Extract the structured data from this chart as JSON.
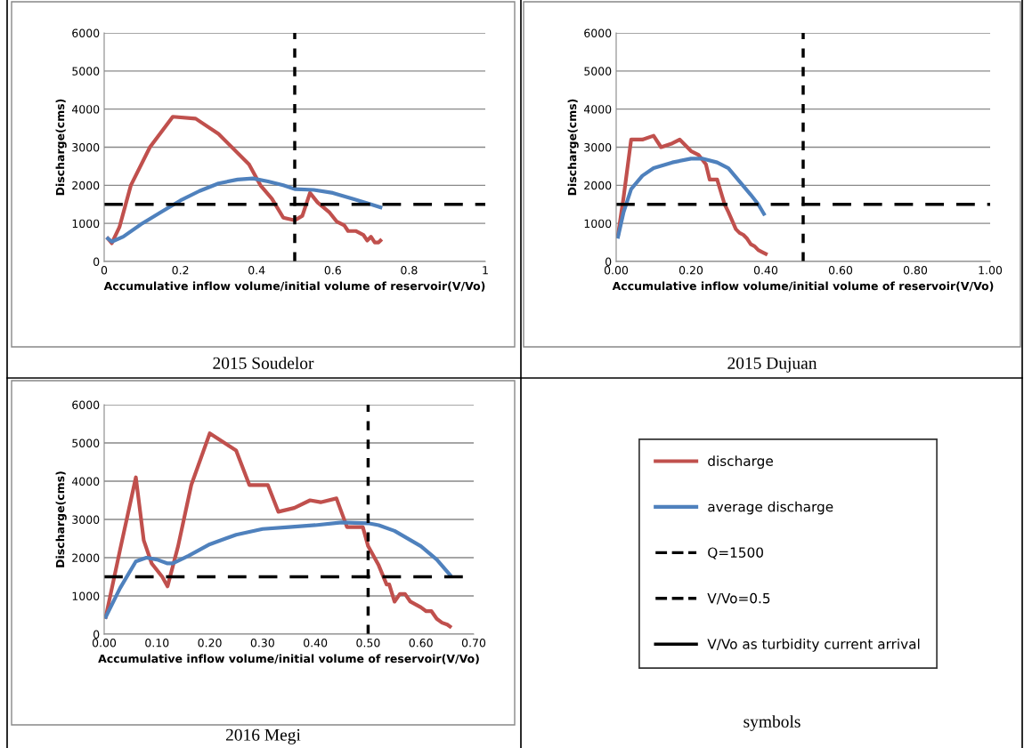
{
  "chart_data": [
    {
      "type": "line",
      "title": "2015 Soudelor",
      "xlabel": "Accumulative inflow volume/initial volume of reservoir(V/Vo)",
      "ylabel": "Discharge(cms)",
      "xlim": [
        0,
        1
      ],
      "xticks": [
        0,
        0.2,
        0.4,
        0.6,
        0.8,
        1
      ],
      "ylim": [
        0,
        6000
      ],
      "yticks": [
        0,
        1000,
        2000,
        3000,
        4000,
        5000,
        6000
      ],
      "grid": "y",
      "legend": "bottom right",
      "series": [
        {
          "name": "discharge",
          "color": "#c0504d",
          "x": [
            0.01,
            0.02,
            0.04,
            0.07,
            0.12,
            0.18,
            0.24,
            0.3,
            0.38,
            0.41,
            0.44,
            0.47,
            0.5,
            0.52,
            0.54,
            0.56,
            0.59,
            0.61,
            0.63,
            0.64,
            0.66,
            0.68,
            0.69,
            0.7,
            0.71,
            0.72,
            0.725
          ],
          "values": [
            600,
            480,
            900,
            2000,
            3000,
            3800,
            3750,
            3350,
            2550,
            2000,
            1650,
            1150,
            1080,
            1200,
            1800,
            1550,
            1300,
            1050,
            950,
            800,
            800,
            700,
            550,
            650,
            500,
            500,
            550
          ]
        },
        {
          "name": "average discharge",
          "color": "#4f81bd",
          "x": [
            0.01,
            0.02,
            0.05,
            0.1,
            0.15,
            0.2,
            0.25,
            0.3,
            0.35,
            0.39,
            0.43,
            0.47,
            0.5,
            0.55,
            0.6,
            0.65,
            0.7,
            0.725
          ],
          "values": [
            600,
            520,
            650,
            1000,
            1300,
            1600,
            1850,
            2050,
            2150,
            2180,
            2100,
            2000,
            1900,
            1880,
            1800,
            1650,
            1500,
            1420
          ]
        }
      ],
      "ref_lines": [
        {
          "axis": "y",
          "value": 1500,
          "label": "Q=1500",
          "color": "#000000",
          "line_style": "dashed"
        },
        {
          "axis": "x",
          "value": 0.5,
          "label": "V/Vo=0.5",
          "color": "#000000",
          "line_style": "dotted"
        }
      ]
    },
    {
      "type": "line",
      "title": "2015 Dujuan",
      "xlabel": "Accumulative inflow volume/initial volume of reservoir(V/Vo)",
      "ylabel": "Discharge(cms)",
      "xlim": [
        0,
        1
      ],
      "xticks": [
        {
          "value": 0,
          "label": "0.00"
        },
        {
          "value": 0.2,
          "label": "0.20"
        },
        {
          "value": 0.4,
          "label": "0.40"
        },
        {
          "value": 0.6,
          "label": "0.60"
        },
        {
          "value": 0.8,
          "label": "0.80"
        },
        {
          "value": 1,
          "label": "1.00"
        }
      ],
      "ylim": [
        0,
        6000
      ],
      "yticks": [
        0,
        1000,
        2000,
        3000,
        4000,
        5000,
        6000
      ],
      "grid": "y",
      "series": [
        {
          "color": "#c0504d",
          "x": [
            0.005,
            0.02,
            0.04,
            0.07,
            0.1,
            0.12,
            0.15,
            0.17,
            0.2,
            0.22,
            0.24,
            0.25,
            0.27,
            0.29,
            0.3,
            0.32,
            0.33,
            0.34,
            0.35,
            0.36,
            0.37,
            0.38,
            0.39,
            0.4
          ],
          "values": [
            700,
            1700,
            3200,
            3200,
            3300,
            3000,
            3100,
            3200,
            2900,
            2800,
            2550,
            2150,
            2150,
            1500,
            1300,
            850,
            750,
            700,
            600,
            450,
            400,
            300,
            250,
            200
          ]
        },
        {
          "color": "#4f81bd",
          "x": [
            0.005,
            0.02,
            0.04,
            0.07,
            0.1,
            0.15,
            0.2,
            0.23,
            0.27,
            0.3,
            0.33,
            0.36,
            0.38,
            0.395
          ],
          "values": [
            650,
            1300,
            1900,
            2250,
            2450,
            2600,
            2700,
            2700,
            2600,
            2450,
            2100,
            1750,
            1500,
            1250
          ]
        }
      ],
      "ref_lines": [
        {
          "axis": "y",
          "value": 1500,
          "color": "#000000",
          "line_style": "dashed"
        },
        {
          "axis": "x",
          "value": 0.5,
          "color": "#000000",
          "line_style": "dotted"
        }
      ]
    },
    {
      "type": "line",
      "title": "2016 Megi",
      "xlabel": "Accumulative inflow volume/initial volume of reservoir(V/Vo)",
      "ylabel": "Discharge(cms)",
      "xlim": [
        0,
        0.7
      ],
      "xticks": [
        {
          "value": 0,
          "label": "0.00"
        },
        {
          "value": 0.1,
          "label": "0.10"
        },
        {
          "value": 0.2,
          "label": "0.20"
        },
        {
          "value": 0.3,
          "label": "0.30"
        },
        {
          "value": 0.4,
          "label": "0.40"
        },
        {
          "value": 0.5,
          "label": "0.50"
        },
        {
          "value": 0.6,
          "label": "0.60"
        },
        {
          "value": 0.7,
          "label": "0.70"
        }
      ],
      "ylim": [
        0,
        6000
      ],
      "yticks": [
        0,
        1000,
        2000,
        3000,
        4000,
        5000,
        6000
      ],
      "grid": "y",
      "series": [
        {
          "color": "#c0504d",
          "x": [
            0.003,
            0.03,
            0.06,
            0.075,
            0.09,
            0.11,
            0.12,
            0.14,
            0.165,
            0.2,
            0.25,
            0.275,
            0.31,
            0.33,
            0.36,
            0.39,
            0.41,
            0.44,
            0.46,
            0.49,
            0.5,
            0.52,
            0.535,
            0.54,
            0.55,
            0.56,
            0.57,
            0.58,
            0.6,
            0.61,
            0.62,
            0.63,
            0.64,
            0.65,
            0.655
          ],
          "values": [
            450,
            2200,
            4100,
            2450,
            1850,
            1500,
            1250,
            2300,
            3900,
            5250,
            4800,
            3900,
            3900,
            3200,
            3300,
            3500,
            3450,
            3550,
            2800,
            2800,
            2300,
            1800,
            1300,
            1300,
            850,
            1050,
            1050,
            850,
            700,
            600,
            600,
            400,
            300,
            250,
            200
          ]
        },
        {
          "color": "#4f81bd",
          "x": [
            0.003,
            0.03,
            0.06,
            0.08,
            0.1,
            0.12,
            0.13,
            0.16,
            0.2,
            0.25,
            0.3,
            0.35,
            0.4,
            0.45,
            0.5,
            0.52,
            0.55,
            0.6,
            0.63,
            0.655
          ],
          "values": [
            450,
            1200,
            1900,
            2000,
            1950,
            1850,
            1850,
            2050,
            2350,
            2600,
            2750,
            2800,
            2850,
            2920,
            2900,
            2850,
            2700,
            2300,
            1950,
            1550
          ]
        }
      ],
      "ref_lines": [
        {
          "axis": "y",
          "value": 1500,
          "color": "#000000",
          "line_style": "dashed"
        },
        {
          "axis": "x",
          "value": 0.5,
          "color": "#000000",
          "line_style": "dotted"
        }
      ]
    },
    {
      "type": "other",
      "title": "symbols",
      "annotations": [
        "V/Vo as turbidity current arrival"
      ]
    }
  ]
}
